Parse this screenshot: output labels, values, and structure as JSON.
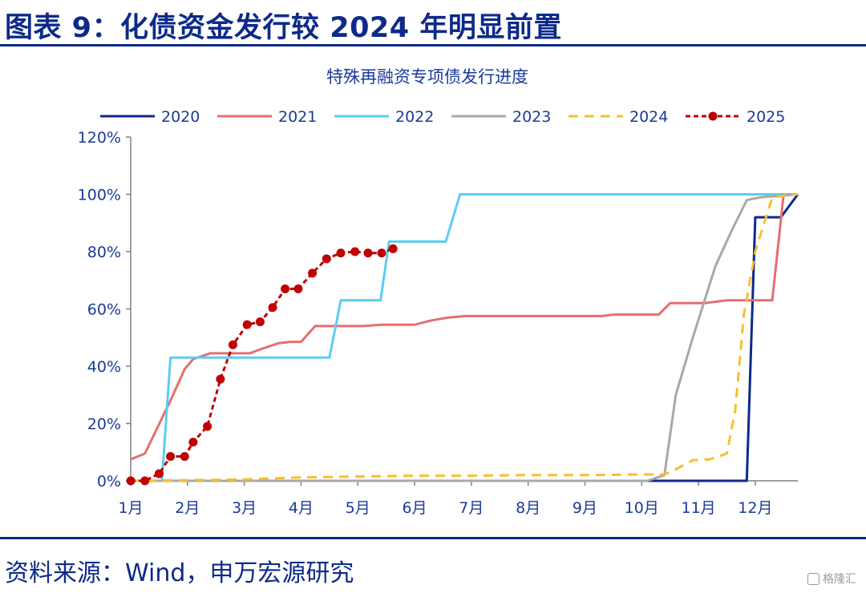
{
  "figure": {
    "title": "图表 9：化债资金发行较 2024 年明显前置",
    "source": "资料来源：Wind，申万宏源研究",
    "watermark": "格隆汇"
  },
  "colors": {
    "heading": "#0d2a8a",
    "axis_text": "#1a3a9a",
    "axis_line": "#808080"
  },
  "chart_data": {
    "type": "line",
    "title": "特殊再融资专项债发行进度",
    "xlabel": "",
    "ylabel": "",
    "ylim": [
      0,
      1.2
    ],
    "yticks": [
      0,
      0.2,
      0.4,
      0.6,
      0.8,
      1.0,
      1.2
    ],
    "ytick_labels": [
      "0%",
      "20%",
      "40%",
      "60%",
      "80%",
      "100%",
      "120%"
    ],
    "xlim": [
      1,
      12.75
    ],
    "xticks": [
      1,
      2,
      3,
      4,
      5,
      6,
      7,
      8,
      9,
      10,
      11,
      12
    ],
    "xtick_labels": [
      "1月",
      "2月",
      "3月",
      "4月",
      "5月",
      "6月",
      "7月",
      "8月",
      "9月",
      "10月",
      "11月",
      "12月"
    ],
    "grid": false,
    "legend": "top",
    "series": [
      {
        "name": "2020",
        "color": "#0d2a8a",
        "style": "solid",
        "x": [
          1,
          11.85,
          12.0,
          12.45,
          12.75
        ],
        "y": [
          0,
          0,
          0.92,
          0.92,
          1.0
        ]
      },
      {
        "name": "2021",
        "color": "#e46f6f",
        "style": "solid",
        "x": [
          1,
          1.25,
          1.7,
          1.95,
          2.1,
          2.4,
          2.8,
          3.1,
          3.3,
          3.6,
          3.8,
          4.0,
          4.25,
          4.6,
          5.1,
          5.4,
          6.0,
          6.3,
          6.6,
          6.9,
          7.5,
          8.5,
          9.3,
          9.5,
          9.9,
          10.3,
          10.5,
          11.1,
          11.5,
          12.3,
          12.5,
          12.75
        ],
        "y": [
          0.075,
          0.095,
          0.28,
          0.39,
          0.425,
          0.445,
          0.445,
          0.445,
          0.46,
          0.48,
          0.485,
          0.485,
          0.54,
          0.54,
          0.54,
          0.545,
          0.545,
          0.56,
          0.57,
          0.575,
          0.575,
          0.575,
          0.575,
          0.58,
          0.58,
          0.58,
          0.62,
          0.62,
          0.63,
          0.63,
          1.0,
          1.0
        ]
      },
      {
        "name": "2022",
        "color": "#5bcdf3",
        "style": "solid",
        "x": [
          1,
          1.55,
          1.7,
          4.5,
          4.7,
          5.4,
          5.55,
          6.55,
          6.8,
          12.75
        ],
        "y": [
          0,
          0,
          0.43,
          0.43,
          0.63,
          0.63,
          0.835,
          0.835,
          1.0,
          1.0
        ]
      },
      {
        "name": "2023",
        "color": "#a8a8a8",
        "style": "solid",
        "x": [
          1,
          10.1,
          10.4,
          10.6,
          10.9,
          11.3,
          11.6,
          11.85,
          12.1,
          12.75
        ],
        "y": [
          0,
          0,
          0.02,
          0.3,
          0.5,
          0.75,
          0.88,
          0.98,
          0.99,
          1.0
        ]
      },
      {
        "name": "2024",
        "color": "#f6c12d",
        "style": "dashed",
        "x": [
          1,
          3.0,
          4.0,
          5.0,
          6.0,
          7.0,
          8.0,
          9.0,
          10.0,
          10.4,
          10.6,
          10.9,
          11.2,
          11.5,
          11.65,
          11.8,
          12.0,
          12.3,
          12.75
        ],
        "y": [
          0,
          0.005,
          0.012,
          0.015,
          0.018,
          0.018,
          0.02,
          0.02,
          0.022,
          0.022,
          0.04,
          0.072,
          0.075,
          0.095,
          0.25,
          0.58,
          0.8,
          0.99,
          1.0
        ]
      },
      {
        "name": "2025",
        "color": "#c00000",
        "style": "dotted-marker",
        "x": [
          1.0,
          1.25,
          1.5,
          1.7,
          1.95,
          2.1,
          2.35,
          2.58,
          2.8,
          3.05,
          3.28,
          3.5,
          3.72,
          3.95,
          4.2,
          4.45,
          4.7,
          4.95,
          5.18,
          5.42,
          5.62
        ],
        "y": [
          0.0,
          0.0,
          0.025,
          0.085,
          0.085,
          0.135,
          0.19,
          0.355,
          0.475,
          0.545,
          0.555,
          0.605,
          0.67,
          0.67,
          0.725,
          0.775,
          0.795,
          0.8,
          0.795,
          0.795,
          0.81
        ]
      }
    ]
  }
}
